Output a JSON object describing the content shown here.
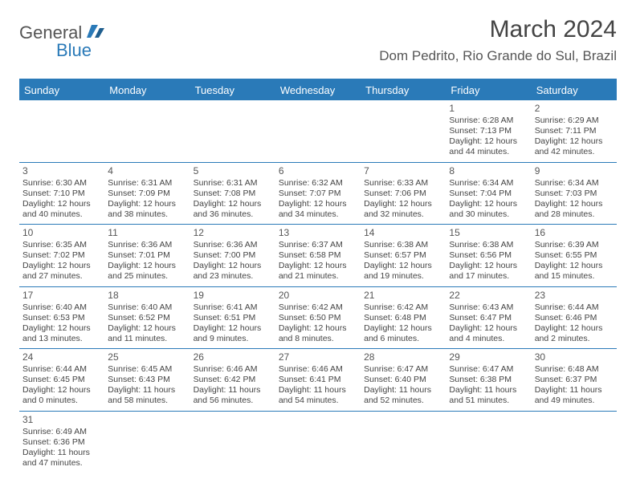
{
  "logo": {
    "word1": "General",
    "word2": "Blue"
  },
  "title": {
    "month_year": "March 2024",
    "location": "Dom Pedrito, Rio Grande do Sul, Brazil"
  },
  "colors": {
    "header_bg": "#2a7ab8",
    "header_text": "#ffffff",
    "border": "#2a7ab8",
    "text": "#444444"
  },
  "day_headers": [
    "Sunday",
    "Monday",
    "Tuesday",
    "Wednesday",
    "Thursday",
    "Friday",
    "Saturday"
  ],
  "weeks": [
    [
      null,
      null,
      null,
      null,
      null,
      {
        "n": "1",
        "sr": "Sunrise: 6:28 AM",
        "ss": "Sunset: 7:13 PM",
        "dl": "Daylight: 12 hours and 44 minutes."
      },
      {
        "n": "2",
        "sr": "Sunrise: 6:29 AM",
        "ss": "Sunset: 7:11 PM",
        "dl": "Daylight: 12 hours and 42 minutes."
      }
    ],
    [
      {
        "n": "3",
        "sr": "Sunrise: 6:30 AM",
        "ss": "Sunset: 7:10 PM",
        "dl": "Daylight: 12 hours and 40 minutes."
      },
      {
        "n": "4",
        "sr": "Sunrise: 6:31 AM",
        "ss": "Sunset: 7:09 PM",
        "dl": "Daylight: 12 hours and 38 minutes."
      },
      {
        "n": "5",
        "sr": "Sunrise: 6:31 AM",
        "ss": "Sunset: 7:08 PM",
        "dl": "Daylight: 12 hours and 36 minutes."
      },
      {
        "n": "6",
        "sr": "Sunrise: 6:32 AM",
        "ss": "Sunset: 7:07 PM",
        "dl": "Daylight: 12 hours and 34 minutes."
      },
      {
        "n": "7",
        "sr": "Sunrise: 6:33 AM",
        "ss": "Sunset: 7:06 PM",
        "dl": "Daylight: 12 hours and 32 minutes."
      },
      {
        "n": "8",
        "sr": "Sunrise: 6:34 AM",
        "ss": "Sunset: 7:04 PM",
        "dl": "Daylight: 12 hours and 30 minutes."
      },
      {
        "n": "9",
        "sr": "Sunrise: 6:34 AM",
        "ss": "Sunset: 7:03 PM",
        "dl": "Daylight: 12 hours and 28 minutes."
      }
    ],
    [
      {
        "n": "10",
        "sr": "Sunrise: 6:35 AM",
        "ss": "Sunset: 7:02 PM",
        "dl": "Daylight: 12 hours and 27 minutes."
      },
      {
        "n": "11",
        "sr": "Sunrise: 6:36 AM",
        "ss": "Sunset: 7:01 PM",
        "dl": "Daylight: 12 hours and 25 minutes."
      },
      {
        "n": "12",
        "sr": "Sunrise: 6:36 AM",
        "ss": "Sunset: 7:00 PM",
        "dl": "Daylight: 12 hours and 23 minutes."
      },
      {
        "n": "13",
        "sr": "Sunrise: 6:37 AM",
        "ss": "Sunset: 6:58 PM",
        "dl": "Daylight: 12 hours and 21 minutes."
      },
      {
        "n": "14",
        "sr": "Sunrise: 6:38 AM",
        "ss": "Sunset: 6:57 PM",
        "dl": "Daylight: 12 hours and 19 minutes."
      },
      {
        "n": "15",
        "sr": "Sunrise: 6:38 AM",
        "ss": "Sunset: 6:56 PM",
        "dl": "Daylight: 12 hours and 17 minutes."
      },
      {
        "n": "16",
        "sr": "Sunrise: 6:39 AM",
        "ss": "Sunset: 6:55 PM",
        "dl": "Daylight: 12 hours and 15 minutes."
      }
    ],
    [
      {
        "n": "17",
        "sr": "Sunrise: 6:40 AM",
        "ss": "Sunset: 6:53 PM",
        "dl": "Daylight: 12 hours and 13 minutes."
      },
      {
        "n": "18",
        "sr": "Sunrise: 6:40 AM",
        "ss": "Sunset: 6:52 PM",
        "dl": "Daylight: 12 hours and 11 minutes."
      },
      {
        "n": "19",
        "sr": "Sunrise: 6:41 AM",
        "ss": "Sunset: 6:51 PM",
        "dl": "Daylight: 12 hours and 9 minutes."
      },
      {
        "n": "20",
        "sr": "Sunrise: 6:42 AM",
        "ss": "Sunset: 6:50 PM",
        "dl": "Daylight: 12 hours and 8 minutes."
      },
      {
        "n": "21",
        "sr": "Sunrise: 6:42 AM",
        "ss": "Sunset: 6:48 PM",
        "dl": "Daylight: 12 hours and 6 minutes."
      },
      {
        "n": "22",
        "sr": "Sunrise: 6:43 AM",
        "ss": "Sunset: 6:47 PM",
        "dl": "Daylight: 12 hours and 4 minutes."
      },
      {
        "n": "23",
        "sr": "Sunrise: 6:44 AM",
        "ss": "Sunset: 6:46 PM",
        "dl": "Daylight: 12 hours and 2 minutes."
      }
    ],
    [
      {
        "n": "24",
        "sr": "Sunrise: 6:44 AM",
        "ss": "Sunset: 6:45 PM",
        "dl": "Daylight: 12 hours and 0 minutes."
      },
      {
        "n": "25",
        "sr": "Sunrise: 6:45 AM",
        "ss": "Sunset: 6:43 PM",
        "dl": "Daylight: 11 hours and 58 minutes."
      },
      {
        "n": "26",
        "sr": "Sunrise: 6:46 AM",
        "ss": "Sunset: 6:42 PM",
        "dl": "Daylight: 11 hours and 56 minutes."
      },
      {
        "n": "27",
        "sr": "Sunrise: 6:46 AM",
        "ss": "Sunset: 6:41 PM",
        "dl": "Daylight: 11 hours and 54 minutes."
      },
      {
        "n": "28",
        "sr": "Sunrise: 6:47 AM",
        "ss": "Sunset: 6:40 PM",
        "dl": "Daylight: 11 hours and 52 minutes."
      },
      {
        "n": "29",
        "sr": "Sunrise: 6:47 AM",
        "ss": "Sunset: 6:38 PM",
        "dl": "Daylight: 11 hours and 51 minutes."
      },
      {
        "n": "30",
        "sr": "Sunrise: 6:48 AM",
        "ss": "Sunset: 6:37 PM",
        "dl": "Daylight: 11 hours and 49 minutes."
      }
    ],
    [
      {
        "n": "31",
        "sr": "Sunrise: 6:49 AM",
        "ss": "Sunset: 6:36 PM",
        "dl": "Daylight: 11 hours and 47 minutes."
      },
      null,
      null,
      null,
      null,
      null,
      null
    ]
  ]
}
